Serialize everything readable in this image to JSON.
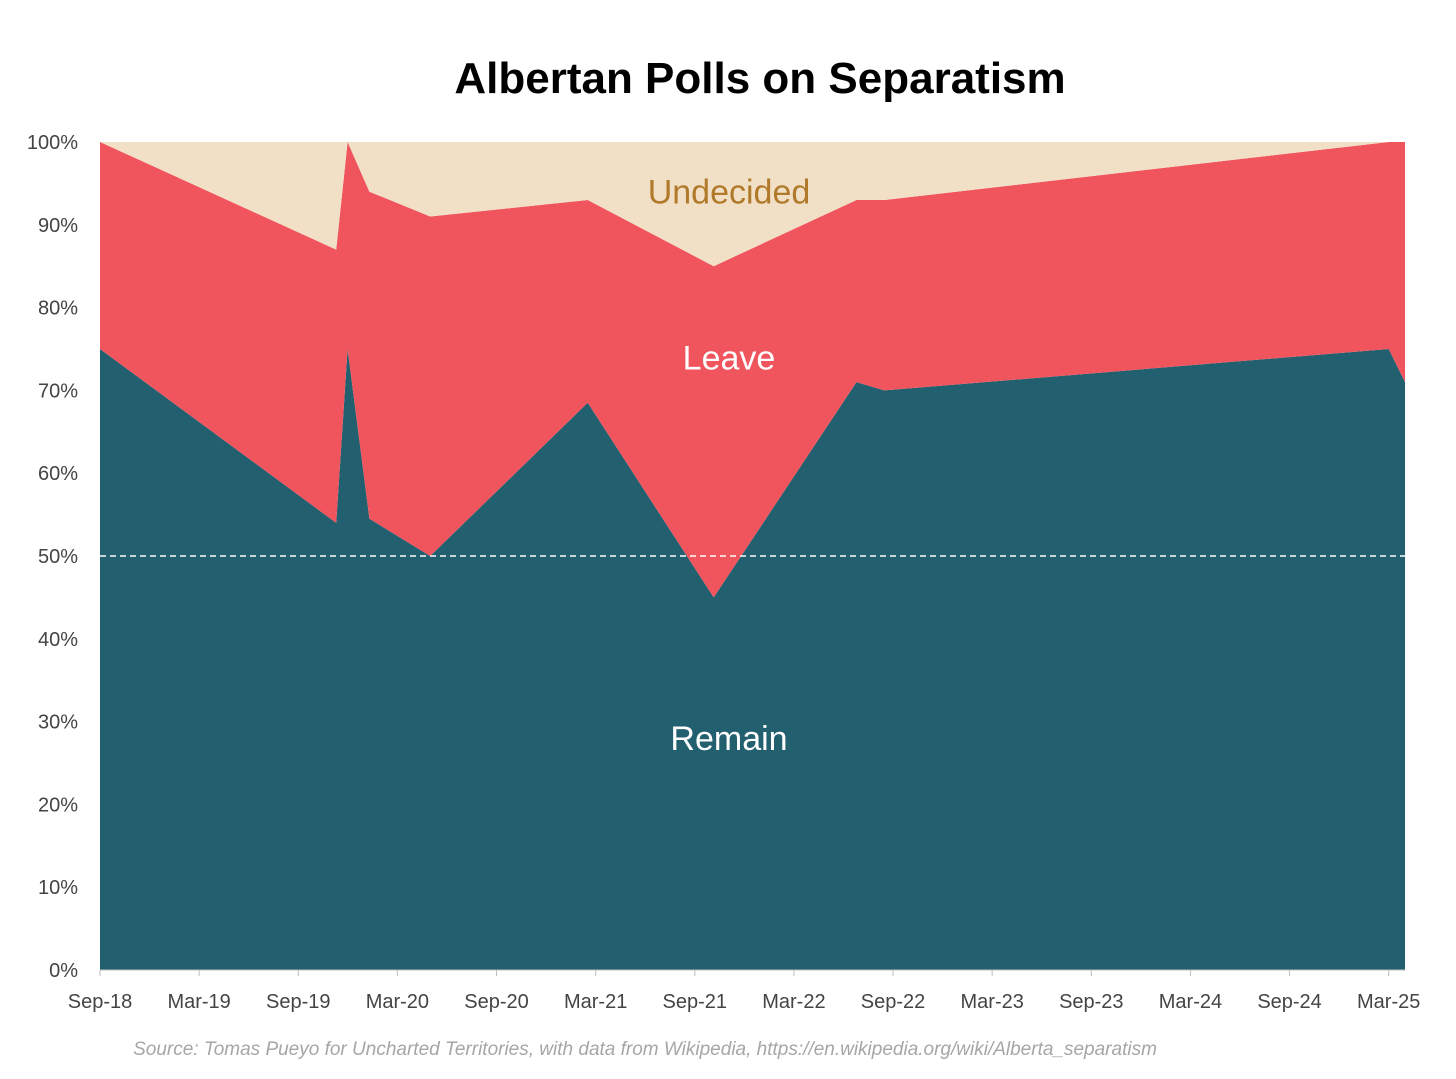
{
  "chart_data": {
    "type": "area",
    "title": "Albertan Polls on Separatism",
    "source": "Source: Tomas Pueyo for Uncharted Territories, with data from Wikipedia, https://en.wikipedia.org/wiki/Alberta_separatism",
    "ylim": [
      0,
      100
    ],
    "ytick_labels": [
      "0%",
      "10%",
      "20%",
      "30%",
      "40%",
      "50%",
      "60%",
      "70%",
      "80%",
      "90%",
      "100%"
    ],
    "xtick_labels": [
      "Sep-18",
      "Mar-19",
      "Sep-19",
      "Mar-20",
      "Sep-20",
      "Mar-21",
      "Sep-21",
      "Mar-22",
      "Sep-22",
      "Mar-23",
      "Sep-23",
      "Mar-24",
      "Sep-24",
      "Mar-25"
    ],
    "reference_line": {
      "y": 50,
      "style": "dashed"
    },
    "x": [
      "2018-09-01",
      "2019-11-10",
      "2019-12-01",
      "2020-01-10",
      "2020-05-01",
      "2021-02-15",
      "2021-10-05",
      "2022-06-25",
      "2022-08-15",
      "2025-03-01",
      "2025-03-31"
    ],
    "series": [
      {
        "name": "Remain",
        "color": "#225f6f",
        "label_color": "#ffffff",
        "values": [
          75,
          54,
          75,
          54.5,
          50,
          68.5,
          45,
          71,
          70,
          75,
          71
        ]
      },
      {
        "name": "Leave",
        "color": "#f0545d",
        "label_color": "#ffffff",
        "values": [
          25,
          33,
          25,
          39.5,
          41,
          24.5,
          40,
          22,
          23,
          25,
          29
        ]
      },
      {
        "name": "Undecided",
        "color": "#f2e0c6",
        "label_color": "#b07a2a",
        "values": [
          0,
          13,
          0,
          6,
          9,
          7,
          15,
          7,
          7,
          0,
          0
        ]
      }
    ]
  }
}
